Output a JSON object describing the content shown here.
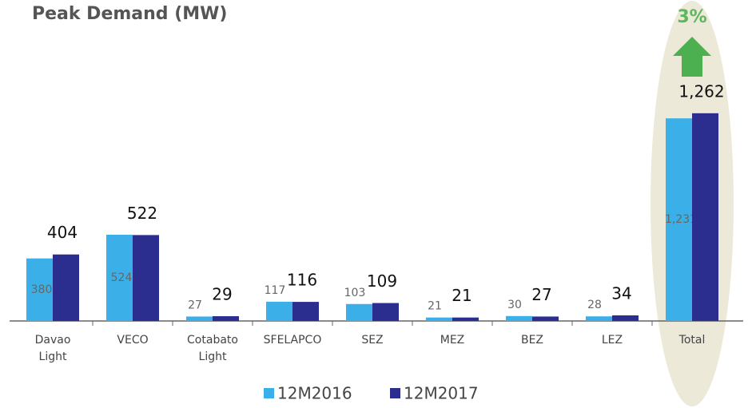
{
  "chart_data": {
    "type": "bar",
    "title": "Peak Demand (MW)",
    "categories": [
      "Davao Light",
      "VECO",
      "Cotabato Light",
      "SFELAPCO",
      "SEZ",
      "MEZ",
      "BEZ",
      "LEZ",
      "Total"
    ],
    "series": [
      {
        "name": "12M2016",
        "color": "#3bb0e8",
        "values": [
          380,
          524,
          27,
          117,
          103,
          21,
          30,
          28,
          1231
        ],
        "value_labels": [
          "380",
          "524",
          "27",
          "117",
          "103",
          "21",
          "30",
          "28",
          "1,231"
        ]
      },
      {
        "name": "12M2017",
        "color": "#2b2d8f",
        "values": [
          404,
          522,
          29,
          116,
          109,
          21,
          27,
          34,
          1262
        ],
        "value_labels": [
          "404",
          "522",
          "29",
          "116",
          "109",
          "21",
          "27",
          "34",
          "1,262"
        ]
      }
    ],
    "annotation": "3%",
    "ylim": [
      0,
      1300
    ]
  }
}
